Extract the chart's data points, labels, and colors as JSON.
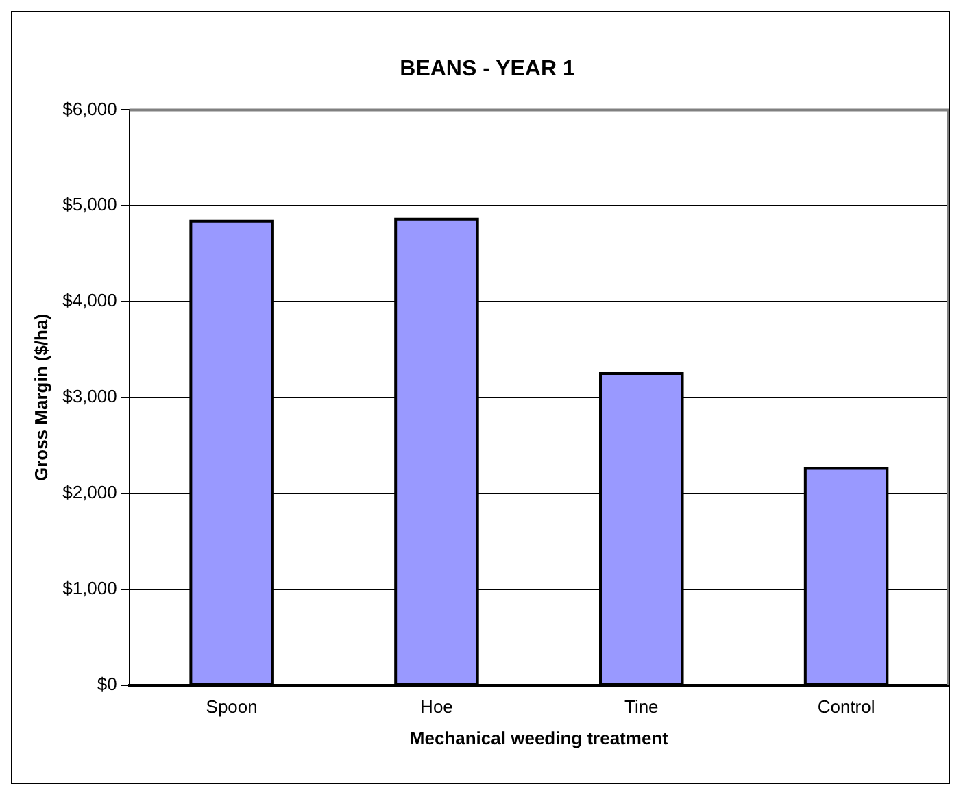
{
  "chart_data": {
    "type": "bar",
    "title": "BEANS - YEAR 1",
    "xlabel": "Mechanical weeding treatment",
    "ylabel": "Gross Margin ($/ha)",
    "categories": [
      "Spoon",
      "Hoe",
      "Tine",
      "Control"
    ],
    "values": [
      4840,
      4860,
      3250,
      2260
    ],
    "color": "#9999ff",
    "ylim": [
      0,
      6000
    ],
    "yticks": [
      {
        "value": 0,
        "label": "$0"
      },
      {
        "value": 1000,
        "label": "$1,000"
      },
      {
        "value": 2000,
        "label": "$2,000"
      },
      {
        "value": 3000,
        "label": "$3,000"
      },
      {
        "value": 4000,
        "label": "$4,000"
      },
      {
        "value": 5000,
        "label": "$5,000"
      },
      {
        "value": 6000,
        "label": "$6,000"
      }
    ],
    "grid": "y",
    "legend": false
  }
}
